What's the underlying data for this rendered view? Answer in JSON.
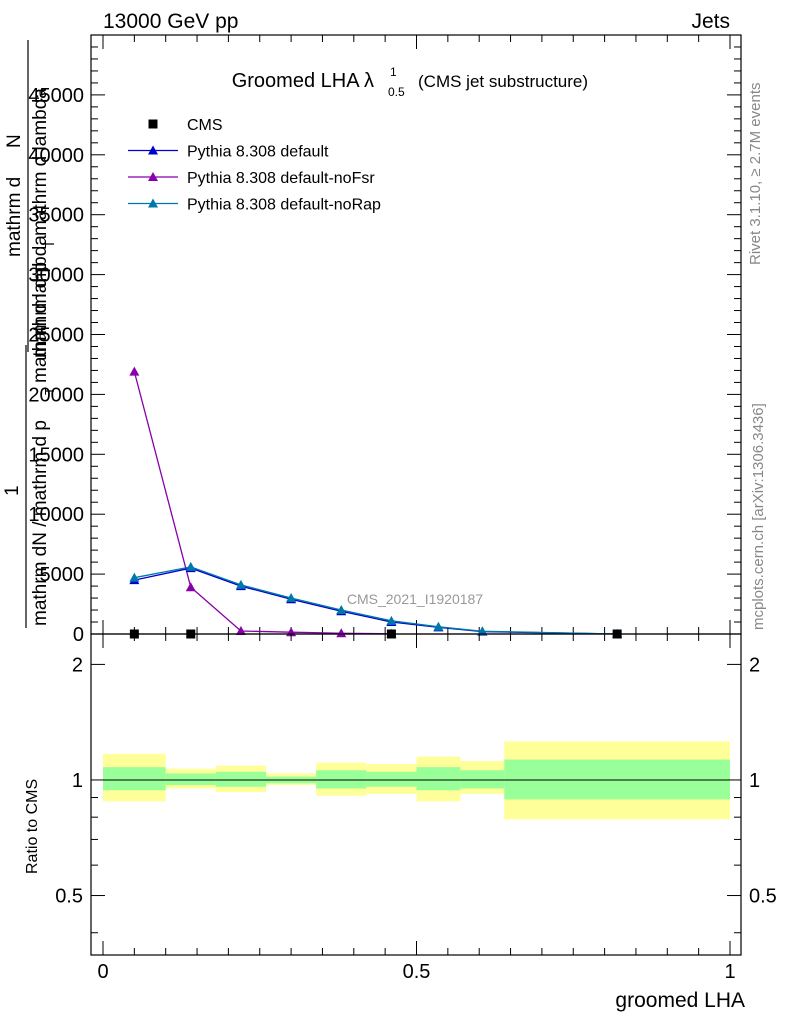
{
  "header": {
    "left": "13000 GeV pp",
    "right": "Jets"
  },
  "side_labels": {
    "rivet": "Rivet 3.1.10, ≥ 2.7M events",
    "mcplots": "mcplots.cern.ch [arXiv:1306.3436]"
  },
  "watermark": "CMS_2021_I1920187",
  "colors": {
    "cms": "#000000",
    "default": "#0000cc",
    "noFsr": "#8800aa",
    "noRap": "#0077aa",
    "band_outer": "#ffff99",
    "band_inner": "#99ff99"
  },
  "chart_data": [
    {
      "type": "line",
      "title": "Groomed LHA λ",
      "title_sup": "1",
      "title_sub": "0.5",
      "subtitle": "(CMS jet substructure)",
      "ylabel_num": "1",
      "ylabel_den": "mathrm dN / mathrm d p",
      "ylabel_den_sub": "T",
      "ylabel_den_tail": "mathrm d lambda",
      "ylabel_over_num": "mathrm d",
      "ylabel_over_num_tail": "N",
      "ylabel_over_den": "mathrm d p",
      "ylabel_over_den_sub": "T",
      "ylabel_over_den_tail": "mathrm d lambda",
      "xlim": [
        0,
        1
      ],
      "ylim": [
        0,
        50000
      ],
      "yticks": [
        0,
        5000,
        10000,
        15000,
        20000,
        25000,
        30000,
        35000,
        40000,
        45000
      ],
      "ytick_labels": [
        "0",
        "5000",
        "10000",
        "15000",
        "20000",
        "25000",
        "30000",
        "35000",
        "40000",
        "45000"
      ],
      "legend": "top-left",
      "series": [
        {
          "name": "CMS",
          "color_key": "cms",
          "marker": "square",
          "line": false,
          "x": [
            0.05,
            0.14,
            0.46,
            0.82
          ],
          "y": [
            0,
            0,
            0,
            0
          ]
        },
        {
          "name": "Pythia 8.308 default",
          "color_key": "default",
          "marker": "triangle",
          "line": true,
          "x": [
            0.05,
            0.14,
            0.22,
            0.3,
            0.38,
            0.46,
            0.535,
            0.605,
            0.82
          ],
          "y": [
            4500,
            5500,
            4000,
            2900,
            1900,
            1000,
            550,
            200,
            0
          ]
        },
        {
          "name": "Pythia 8.308 default-noFsr",
          "color_key": "noFsr",
          "marker": "triangle",
          "line": true,
          "x": [
            0.05,
            0.14,
            0.22,
            0.3,
            0.38,
            0.46
          ],
          "y": [
            21900,
            3900,
            250,
            150,
            60,
            20
          ]
        },
        {
          "name": "Pythia 8.308 default-noRap",
          "color_key": "noRap",
          "marker": "triangle",
          "line": true,
          "x": [
            0.05,
            0.14,
            0.22,
            0.3,
            0.38,
            0.46,
            0.535,
            0.605,
            0.82
          ],
          "y": [
            4700,
            5600,
            4100,
            3000,
            2000,
            1100,
            600,
            230,
            0
          ]
        }
      ]
    },
    {
      "type": "area",
      "ylabel": "Ratio to CMS",
      "xlabel": "groomed LHA",
      "xlim": [
        0,
        1
      ],
      "ylim": [
        0.35,
        2.4
      ],
      "log_y": true,
      "xticks": [
        0,
        0.5,
        1
      ],
      "xtick_labels": [
        "0",
        "0.5",
        "1"
      ],
      "yticks": [
        0.5,
        1,
        2
      ],
      "ytick_labels": [
        "0.5",
        "1",
        "2"
      ],
      "reference_line": 1,
      "bands": [
        {
          "x0": 0.0,
          "x1": 0.1,
          "outer": [
            0.88,
            1.17
          ],
          "inner": [
            0.94,
            1.08
          ]
        },
        {
          "x0": 0.1,
          "x1": 0.18,
          "outer": [
            0.95,
            1.07
          ],
          "inner": [
            0.97,
            1.04
          ]
        },
        {
          "x0": 0.18,
          "x1": 0.26,
          "outer": [
            0.93,
            1.09
          ],
          "inner": [
            0.96,
            1.05
          ]
        },
        {
          "x0": 0.26,
          "x1": 0.34,
          "outer": [
            0.97,
            1.04
          ],
          "inner": [
            0.98,
            1.02
          ]
        },
        {
          "x0": 0.34,
          "x1": 0.42,
          "outer": [
            0.91,
            1.11
          ],
          "inner": [
            0.95,
            1.06
          ]
        },
        {
          "x0": 0.42,
          "x1": 0.5,
          "outer": [
            0.92,
            1.1
          ],
          "inner": [
            0.96,
            1.05
          ]
        },
        {
          "x0": 0.5,
          "x1": 0.57,
          "outer": [
            0.88,
            1.15
          ],
          "inner": [
            0.94,
            1.08
          ]
        },
        {
          "x0": 0.57,
          "x1": 0.64,
          "outer": [
            0.92,
            1.12
          ],
          "inner": [
            0.95,
            1.06
          ]
        },
        {
          "x0": 0.64,
          "x1": 1.0,
          "outer": [
            0.79,
            1.26
          ],
          "inner": [
            0.89,
            1.13
          ]
        }
      ]
    }
  ]
}
